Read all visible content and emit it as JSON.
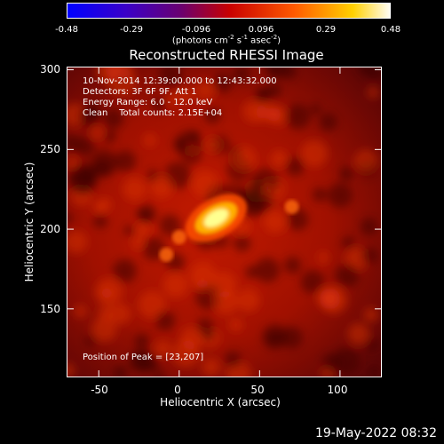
{
  "chart_data": {
    "type": "heatmap",
    "title": "Reconstructed RHESSI Image",
    "colorbar": {
      "ticks": [
        "-0.48",
        "-0.29",
        "-0.096",
        "0.096",
        "0.29",
        "0.48"
      ],
      "range": [
        -0.48,
        0.48
      ],
      "units_main": "(photons cm",
      "units_exp1": "-2",
      "units_mid1": " s",
      "units_exp2": "-1",
      "units_mid2": " asec",
      "units_exp3": "-2",
      "units_end": ")"
    },
    "info_lines": [
      "10-Nov-2014 12:39:00.000 to 12:43:32.000",
      "Detectors: 3F 6F 9F, Att 1",
      "Energy Range: 6.0 - 12.0 keV",
      "Clean    Total counts: 2.15E+04"
    ],
    "peak_label": "Position of Peak = [23,207]",
    "peak": [
      23,
      207
    ],
    "xlabel": "Heliocentric X (arcsec)",
    "ylabel": "Heliocentric Y (arcsec)",
    "xlim": [
      -70,
      126
    ],
    "ylim": [
      107,
      302
    ],
    "x_ticks": [
      "-50",
      "0",
      "50",
      "100"
    ],
    "x_tick_values": [
      -50,
      0,
      50,
      100
    ],
    "y_ticks": [
      "300",
      "250",
      "200",
      "150"
    ],
    "y_tick_values": [
      300,
      250,
      200,
      150
    ],
    "secondary_sources": [
      [
        -8,
        184
      ],
      [
        70,
        214
      ],
      [
        0,
        195
      ]
    ],
    "colormap": "red-temperature"
  },
  "footer": {
    "timestamp": "19-May-2022 08:32"
  }
}
